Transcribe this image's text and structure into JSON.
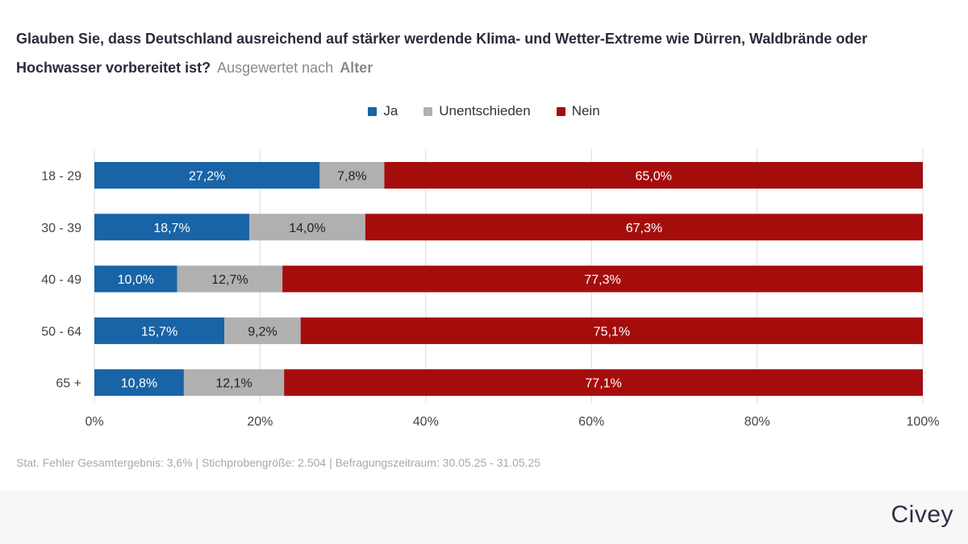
{
  "title_main": "Glauben Sie, dass Deutschland ausreichend auf stärker werdende Klima- und Wetter-Extreme wie Dürren, Waldbrände oder Hochwasser vorbereitet ist?",
  "title_sub_label": "Ausgewertet nach",
  "title_sub_value": "Alter",
  "footnote": "Stat. Fehler Gesamtergebnis: 3,6% | Stichprobengröße: 2.504 | Befragungszeitraum: 30.05.25 - 31.05.25",
  "brand": "Civey",
  "colors": {
    "ja": "#1964a6",
    "unentschieden": "#b0b0b0",
    "nein": "#a50d0d"
  },
  "chart_data": {
    "type": "bar",
    "orientation": "horizontal",
    "stacked": true,
    "categories": [
      "18 - 29",
      "30 - 39",
      "40 - 49",
      "50 - 64",
      "65 +"
    ],
    "series": [
      {
        "name": "Ja",
        "key": "ja",
        "values": [
          27.2,
          18.7,
          10.0,
          15.7,
          10.8
        ],
        "labels": [
          "27,2%",
          "18,7%",
          "10,0%",
          "15,7%",
          "10,8%"
        ]
      },
      {
        "name": "Unentschieden",
        "key": "unentschieden",
        "values": [
          7.8,
          14.0,
          12.7,
          9.2,
          12.1
        ],
        "labels": [
          "7,8%",
          "14,0%",
          "12,7%",
          "9,2%",
          "12,1%"
        ]
      },
      {
        "name": "Nein",
        "key": "nein",
        "values": [
          65.0,
          67.3,
          77.3,
          75.1,
          77.1
        ],
        "labels": [
          "65,0%",
          "67,3%",
          "77,3%",
          "75,1%",
          "77,1%"
        ]
      }
    ],
    "xlim": [
      0,
      100
    ],
    "xticks": [
      "0%",
      "20%",
      "40%",
      "60%",
      "80%",
      "100%"
    ],
    "legend_position": "top-center",
    "grid": true
  }
}
